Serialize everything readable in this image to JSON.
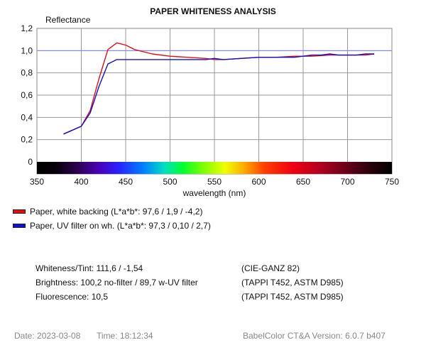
{
  "chart_data": {
    "type": "line",
    "title": "PAPER WHITENESS ANALYSIS",
    "ylabel": "Reflectance",
    "xlabel": "wavelength (nm)",
    "xlim": [
      350,
      750
    ],
    "ylim": [
      0,
      1.2
    ],
    "x_ticks": [
      "350",
      "400",
      "450",
      "500",
      "550",
      "600",
      "650",
      "700",
      "750"
    ],
    "y_ticks": [
      "0",
      "0,2",
      "0,4",
      "0,6",
      "0,8",
      "1,0",
      "1,2"
    ],
    "reference_line": 1.0,
    "grid": true,
    "series": [
      {
        "name": "Paper, white backing (L*a*b*: 97,6 / 1,9 / -4,2)",
        "color": "#e01010",
        "x": [
          380,
          400,
          410,
          420,
          430,
          440,
          450,
          460,
          480,
          500,
          520,
          540,
          550,
          560,
          580,
          600,
          620,
          640,
          660,
          680,
          700,
          720,
          730
        ],
        "y": [
          0.25,
          0.32,
          0.46,
          0.75,
          1.01,
          1.07,
          1.05,
          1.01,
          0.97,
          0.95,
          0.94,
          0.93,
          0.92,
          0.92,
          0.93,
          0.94,
          0.94,
          0.95,
          0.95,
          0.96,
          0.96,
          0.96,
          0.97
        ]
      },
      {
        "name": "Paper, UV filter on wh. (L*a*b*: 97,3 / 0,10 / 2,7)",
        "color": "#1010d0",
        "x": [
          380,
          400,
          410,
          420,
          430,
          440,
          450,
          470,
          500,
          520,
          540,
          550,
          560,
          580,
          600,
          620,
          640,
          660,
          670,
          680,
          690,
          700,
          710,
          720,
          730
        ],
        "y": [
          0.25,
          0.32,
          0.44,
          0.68,
          0.88,
          0.92,
          0.92,
          0.92,
          0.92,
          0.92,
          0.92,
          0.93,
          0.92,
          0.93,
          0.94,
          0.94,
          0.94,
          0.96,
          0.96,
          0.97,
          0.96,
          0.96,
          0.96,
          0.97,
          0.97
        ]
      }
    ]
  },
  "info": {
    "whiteness": "Whiteness/Tint: 111,6 / -1,54",
    "whiteness_std": "(CIE-GANZ 82)",
    "brightness": "Brightness: 100,2 no-filter / 89,7 w-UV filter",
    "brightness_std": "(TAPPI T452, ASTM D985)",
    "fluorescence": "Fluorescence: 10,5",
    "fluorescence_std": "(TAPPI T452, ASTM D985)"
  },
  "footer": {
    "date": "Date: 2023-03-08",
    "time": "Time: 18:12:34",
    "version": "BabelColor CT&A Version: 6.0.7 b407"
  }
}
